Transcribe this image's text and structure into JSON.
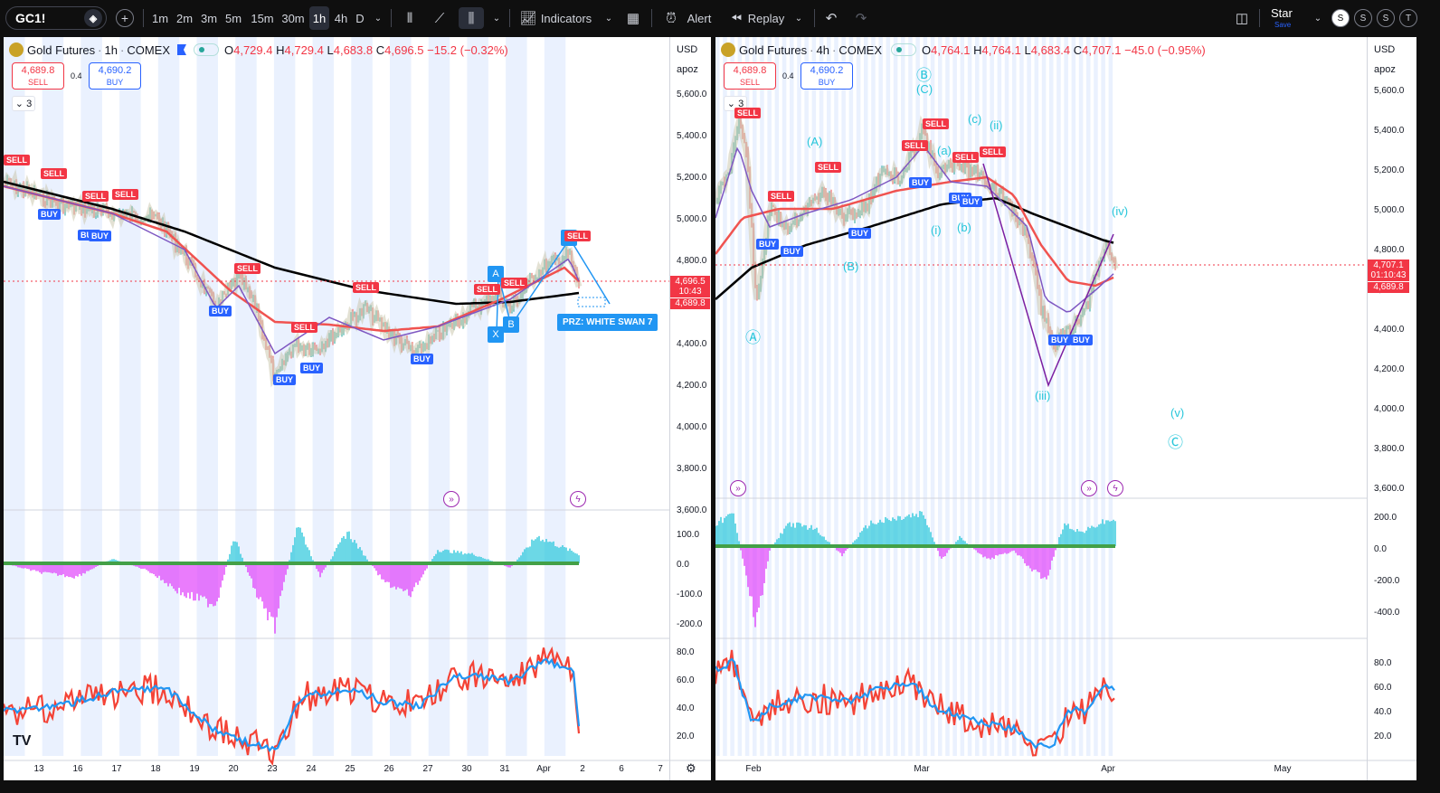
{
  "toolbar": {
    "symbol": "GC1!",
    "intervals": [
      "1m",
      "2m",
      "3m",
      "5m",
      "15m",
      "30m",
      "1h",
      "4h",
      "D"
    ],
    "active_interval": "1h",
    "indicators_label": "Indicators",
    "alert_label": "Alert",
    "replay_label": "Replay",
    "user_name": "Star",
    "save_label": "Save",
    "avatars": [
      "S",
      "S",
      "S",
      "T"
    ]
  },
  "left_chart": {
    "title": "Gold Futures",
    "interval": "1h",
    "exchange": "COMEX",
    "o_key": "O",
    "o": "4,729.4",
    "h_key": "H",
    "h": "4,729.4",
    "l_key": "L",
    "l": "4,683.8",
    "c_key": "C",
    "c": "4,696.5",
    "change": "−15.2 (−0.32%)",
    "sell_price": "4,689.8",
    "sell_label": "SELL",
    "buy_price": "4,690.2",
    "buy_label": "BUY",
    "spread": "0.4",
    "collapse_count": "3",
    "currency": "USD",
    "scale_ctl": "apoz",
    "price_ticks": [
      "5,600.0",
      "5,400.0",
      "5,200.0",
      "5,000.0",
      "4,800.0",
      "4,600.0",
      "4,400.0",
      "4,200.0",
      "4,000.0",
      "3,800.0",
      "3,600.0"
    ],
    "osc_ticks": [
      "100.0",
      "0.0",
      "-100.0",
      "-200.0"
    ],
    "rsi_ticks": [
      "80.0",
      "60.0",
      "40.0",
      "20.0"
    ],
    "date_ticks": [
      "13",
      "16",
      "17",
      "18",
      "19",
      "20",
      "23",
      "24",
      "25",
      "26",
      "27",
      "30",
      "31",
      "Apr",
      "2",
      "6",
      "7"
    ],
    "last_price": "4,696.5",
    "countdown": "10:43",
    "bid_tag": "4,689.8",
    "prz_label": "PRZ: WHITE SWAN 7",
    "pattern_points": [
      "X",
      "A",
      "B",
      "C"
    ],
    "signals": {
      "sell": "SELL",
      "buy": "BUY"
    },
    "logo": "TV"
  },
  "right_chart": {
    "title": "Gold Futures",
    "interval": "4h",
    "exchange": "COMEX",
    "o_key": "O",
    "o": "4,764.1",
    "h_key": "H",
    "h": "4,764.1",
    "l_key": "L",
    "l": "4,683.4",
    "c_key": "C",
    "c": "4,707.1",
    "change": "−45.0 (−0.95%)",
    "sell_price": "4,689.8",
    "sell_label": "SELL",
    "buy_price": "4,690.2",
    "buy_label": "BUY",
    "spread": "0.4",
    "collapse_count": "3",
    "currency": "USD",
    "scale_ctl": "apoz",
    "price_ticks": [
      "5,600.0",
      "5,400.0",
      "5,200.0",
      "5,000.0",
      "4,800.0",
      "4,600.0",
      "4,400.0",
      "4,200.0",
      "4,000.0",
      "3,800.0",
      "3,600.0"
    ],
    "osc_ticks": [
      "200.0",
      "0.0",
      "-200.0",
      "-400.0"
    ],
    "rsi_ticks": [
      "80.0",
      "60.0",
      "40.0",
      "20.0"
    ],
    "date_ticks": [
      "Feb",
      "Mar",
      "Apr",
      "May"
    ],
    "last_price": "4,707.1",
    "countdown": "01:10:43",
    "bid_tag": "4,689.8",
    "waves": [
      "Ⓐ",
      "Ⓑ",
      "(C)",
      "(A)",
      "(B)",
      "(a)",
      "(b)",
      "(c)",
      "(i)",
      "(ii)",
      "(iii)",
      "(iv)",
      "(v)",
      "Ⓒ"
    ]
  },
  "colors": {
    "sell": "#f23645",
    "buy": "#2962ff",
    "ma_black": "#000000",
    "ma_red": "#f05350",
    "ma_purple": "#7e57c2",
    "osc_pos": "#26c6da",
    "osc_neg": "#e040fb",
    "rsi_red": "#f44336",
    "rsi_blue": "#2196f3",
    "wave": "#26c6da",
    "pattern": "#2196f3"
  }
}
